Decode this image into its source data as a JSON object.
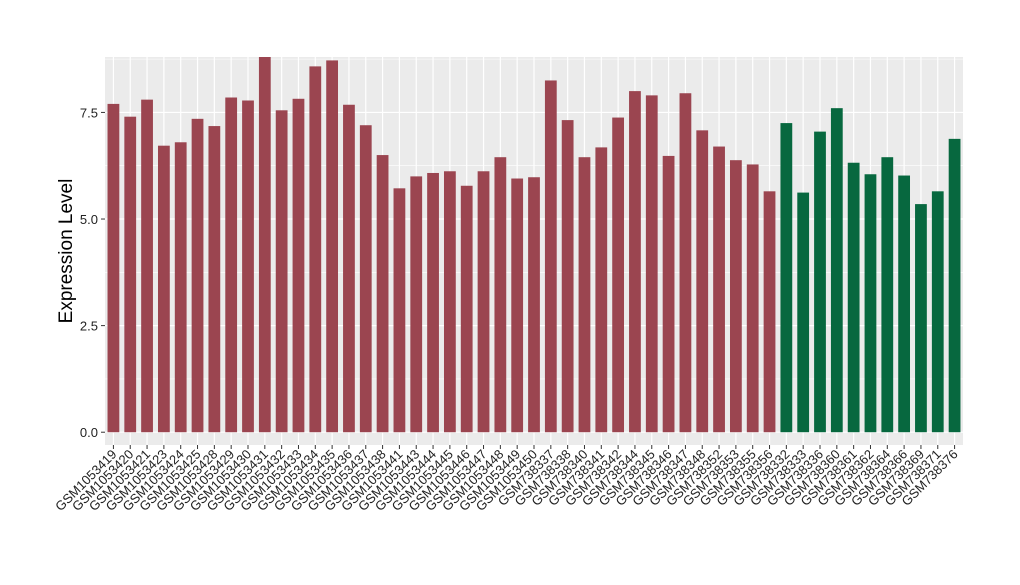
{
  "chart_data": {
    "type": "bar",
    "title": "",
    "xlabel": "",
    "ylabel": "Expression Level",
    "ylim": [
      -0.3,
      8.8
    ],
    "yticks": [
      0.0,
      2.5,
      5.0,
      7.5
    ],
    "ytick_labels": [
      "0.0",
      "2.5",
      "5.0",
      "7.5"
    ],
    "grid": true,
    "legend": "none",
    "colors": {
      "group1": "#9B4550",
      "group2": "#07683F",
      "panel": "#EBEBEB",
      "gridline": "#FFFFFF"
    },
    "categories": [
      "GSM1053419",
      "GSM1053420",
      "GSM1053421",
      "GSM1053423",
      "GSM1053424",
      "GSM1053425",
      "GSM1053428",
      "GSM1053429",
      "GSM1053430",
      "GSM1053431",
      "GSM1053432",
      "GSM1053433",
      "GSM1053434",
      "GSM1053435",
      "GSM1053436",
      "GSM1053437",
      "GSM1053438",
      "GSM1053441",
      "GSM1053443",
      "GSM1053444",
      "GSM1053445",
      "GSM1053446",
      "GSM1053447",
      "GSM1053448",
      "GSM1053449",
      "GSM1053450",
      "GSM738337",
      "GSM738338",
      "GSM738340",
      "GSM738341",
      "GSM738342",
      "GSM738344",
      "GSM738345",
      "GSM738346",
      "GSM738347",
      "GSM738348",
      "GSM738352",
      "GSM738353",
      "GSM738355",
      "GSM738356",
      "GSM738332",
      "GSM738333",
      "GSM738336",
      "GSM738360",
      "GSM738361",
      "GSM738362",
      "GSM738364",
      "GSM738366",
      "GSM738369",
      "GSM738371",
      "GSM738376"
    ],
    "values": [
      7.7,
      7.4,
      7.8,
      6.72,
      6.8,
      7.35,
      7.18,
      7.85,
      7.78,
      8.8,
      7.55,
      7.82,
      8.58,
      8.72,
      7.68,
      7.2,
      6.5,
      5.72,
      6.0,
      6.08,
      6.12,
      5.78,
      6.12,
      6.45,
      5.95,
      5.98,
      8.25,
      7.32,
      6.45,
      6.68,
      7.38,
      8.0,
      7.9,
      6.48,
      7.95,
      7.08,
      6.7,
      6.38,
      6.28,
      5.65,
      7.25,
      5.62,
      7.05,
      7.6,
      6.32,
      6.05,
      6.45,
      6.02,
      5.35,
      5.65,
      6.88
    ],
    "bar_groups": [
      "group1",
      "group1",
      "group1",
      "group1",
      "group1",
      "group1",
      "group1",
      "group1",
      "group1",
      "group1",
      "group1",
      "group1",
      "group1",
      "group1",
      "group1",
      "group1",
      "group1",
      "group1",
      "group1",
      "group1",
      "group1",
      "group1",
      "group1",
      "group1",
      "group1",
      "group1",
      "group1",
      "group1",
      "group1",
      "group1",
      "group1",
      "group1",
      "group1",
      "group1",
      "group1",
      "group1",
      "group1",
      "group1",
      "group1",
      "group1",
      "group2",
      "group2",
      "group2",
      "group2",
      "group2",
      "group2",
      "group2",
      "group2",
      "group2",
      "group2",
      "group2"
    ]
  }
}
